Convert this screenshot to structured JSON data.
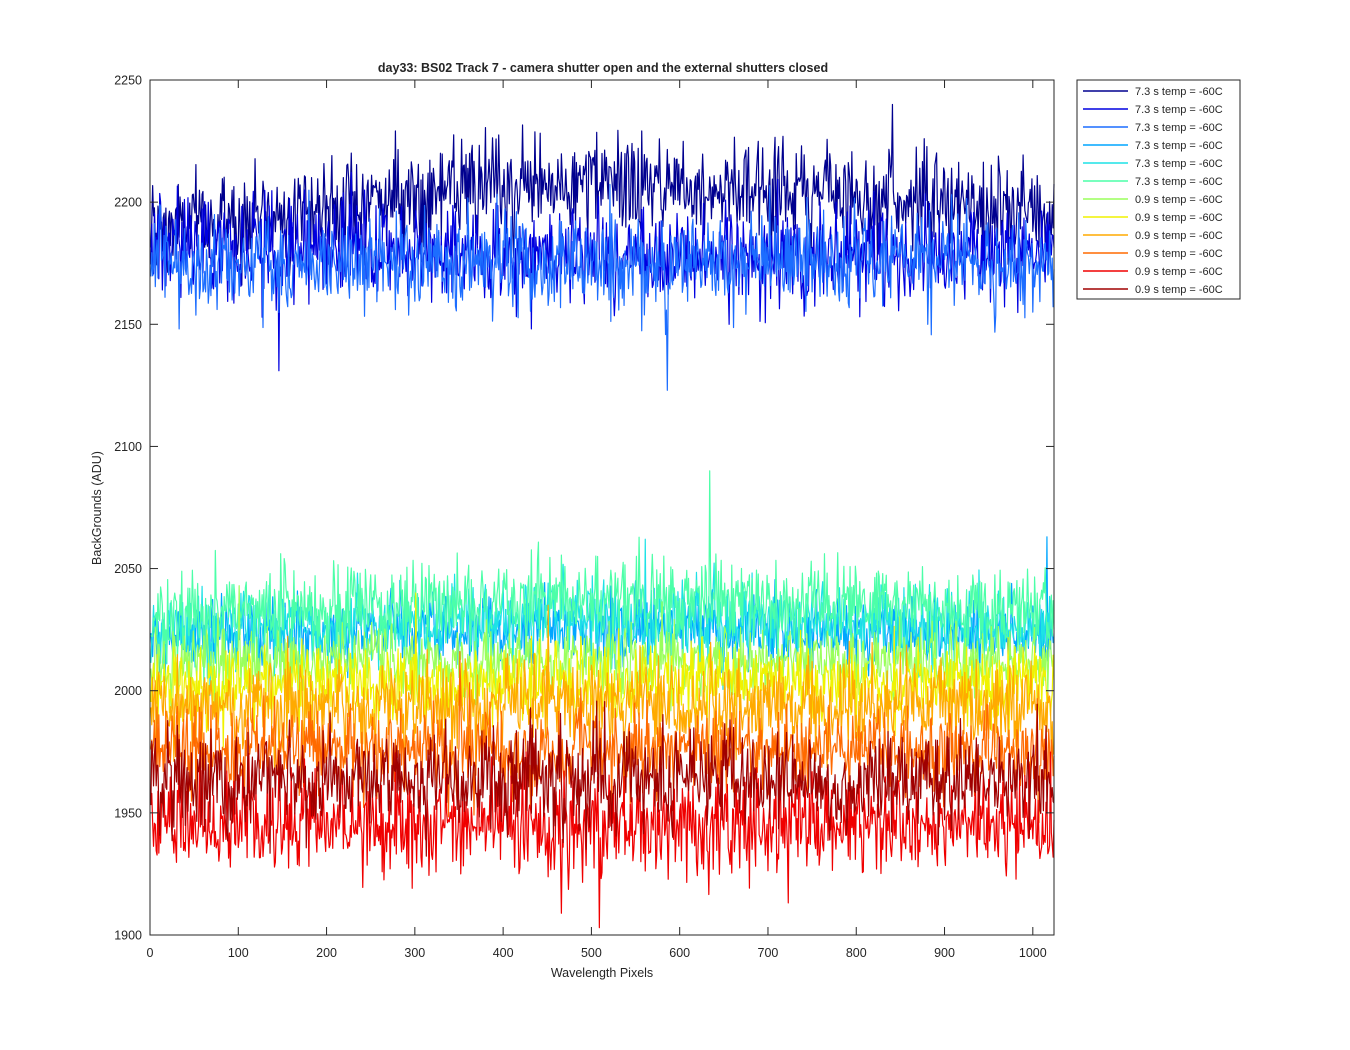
{
  "chart_data": {
    "type": "line",
    "title": "day33: BS02  Track 7 - camera shutter open and the external shutters closed",
    "xlabel": "Wavelength Pixels",
    "ylabel": "BackGrounds (ADU)",
    "xlim": [
      0,
      1024
    ],
    "ylim": [
      1900,
      2250
    ],
    "xticks": [
      0,
      100,
      200,
      300,
      400,
      500,
      600,
      700,
      800,
      900,
      1000
    ],
    "yticks": [
      1900,
      1950,
      2000,
      2050,
      2100,
      2150,
      2200,
      2250
    ],
    "grid": false,
    "legend_position": "outside-top-right",
    "n_points": 1024,
    "series": [
      {
        "name": "7.3 s temp = -60C",
        "color": "#00008f",
        "mean": 2188,
        "trend": 16,
        "std": 10,
        "spike_idx": 840,
        "spike_val": 2240
      },
      {
        "name": "7.3 s temp = -60C",
        "color": "#0000e0",
        "mean": 2184,
        "trend": -4,
        "std": 10,
        "spike_idx": 145,
        "spike_val": 2131
      },
      {
        "name": "7.3 s temp = -60C",
        "color": "#1c6dff",
        "mean": 2175,
        "trend": 0,
        "std": 10,
        "spike_idx": 585,
        "spike_val": 2123
      },
      {
        "name": "7.3 s temp = -60C",
        "color": "#00a6ff",
        "mean": 2022,
        "trend": 3,
        "std": 7,
        "spike_idx": 1015,
        "spike_val": 2063
      },
      {
        "name": "7.3 s temp = -60C",
        "color": "#1de2e6",
        "mean": 2024,
        "trend": 4,
        "std": 8,
        "spike_idx": 560,
        "spike_val": 2062
      },
      {
        "name": "7.3 s temp = -60C",
        "color": "#4cffa8",
        "mean": 2030,
        "trend": 6,
        "std": 9,
        "spike_idx": 633,
        "spike_val": 2090
      },
      {
        "name": "0.9 s temp = -60C",
        "color": "#9aff5c",
        "mean": 2012,
        "trend": 0,
        "std": 7,
        "spike_idx": 100,
        "spike_val": 2043
      },
      {
        "name": "0.9 s temp = -60C",
        "color": "#f0f200",
        "mean": 2003,
        "trend": 0,
        "std": 8,
        "spike_idx": 300,
        "spike_val": 2040
      },
      {
        "name": "0.9 s temp = -60C",
        "color": "#ffaa00",
        "mean": 1994,
        "trend": 0,
        "std": 9,
        "spike_idx": 450,
        "spike_val": 2035
      },
      {
        "name": "0.9 s temp = -60C",
        "color": "#ff6a00",
        "mean": 1975,
        "trend": 0,
        "std": 9,
        "spike_idx": 350,
        "spike_val": 2016
      },
      {
        "name": "0.9 s temp = -60C",
        "color": "#f00000",
        "mean": 1945,
        "trend": 0,
        "std": 10,
        "spike_idx": 508,
        "spike_val": 1903
      },
      {
        "name": "0.9 s temp = -60C",
        "color": "#a00000",
        "mean": 1963,
        "trend": 0,
        "std": 10,
        "spike_idx": 430,
        "spike_val": 1993
      }
    ]
  }
}
